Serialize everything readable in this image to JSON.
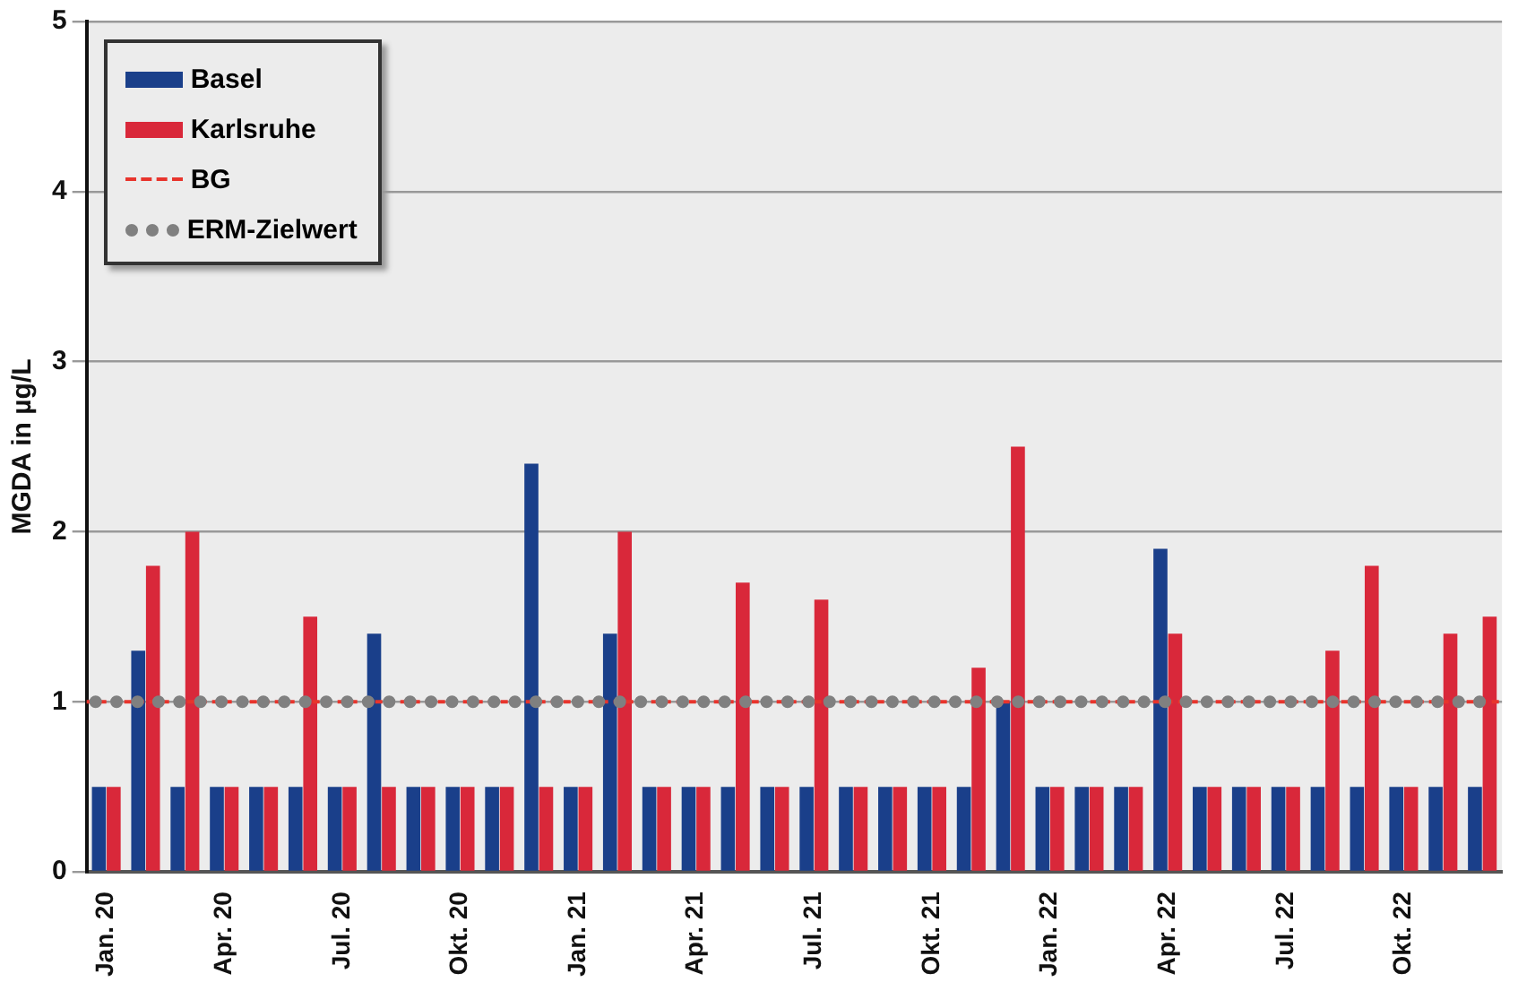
{
  "chart_data": {
    "type": "bar",
    "ylabel": "MGDA in µg/L",
    "categories": [
      "Jan. 20",
      null,
      null,
      "Apr. 20",
      null,
      null,
      "Jul. 20",
      null,
      null,
      "Okt. 20",
      null,
      null,
      "Jan. 21",
      null,
      null,
      "Apr. 21",
      null,
      null,
      "Jul. 21",
      null,
      null,
      "Okt. 21",
      null,
      null,
      "Jan. 22",
      null,
      null,
      "Apr. 22",
      null,
      null,
      "Jul. 22",
      null,
      null,
      "Okt. 22",
      null,
      null
    ],
    "series": [
      {
        "name": "Basel",
        "color": "#1a3f8a",
        "values": [
          0.5,
          1.3,
          0.5,
          0.5,
          0.5,
          0.5,
          0.5,
          1.4,
          0.5,
          0.5,
          0.5,
          2.4,
          0.5,
          1.4,
          0.5,
          0.5,
          0.5,
          0.5,
          0.5,
          0.5,
          0.5,
          0.5,
          0.5,
          1.0,
          0.5,
          0.5,
          0.5,
          1.9,
          0.5,
          0.5,
          0.5,
          0.5,
          0.5,
          0.5,
          0.5,
          0.5
        ]
      },
      {
        "name": "Karlsruhe",
        "color": "#d9283a",
        "values": [
          0.5,
          1.8,
          2.0,
          0.5,
          0.5,
          1.5,
          0.5,
          0.5,
          0.5,
          0.5,
          0.5,
          0.5,
          0.5,
          2.0,
          0.5,
          0.5,
          1.7,
          0.5,
          1.6,
          0.5,
          0.5,
          0.5,
          1.2,
          2.5,
          0.5,
          0.5,
          0.5,
          1.4,
          0.5,
          0.5,
          0.5,
          1.3,
          1.8,
          0.5,
          1.4,
          1.5
        ]
      }
    ],
    "ref_lines": [
      {
        "axis": "y",
        "value": 1,
        "label": "BG",
        "color": "#e8342c",
        "line_style": "dashed"
      },
      {
        "axis": "y",
        "value": 1,
        "label": "ERM-Zielwert",
        "color": "#808080",
        "line_style": "dotted"
      }
    ],
    "ylim": [
      0,
      5
    ],
    "yticks": [
      0,
      1,
      2,
      3,
      4,
      5
    ],
    "grid": "y",
    "legend": "top left"
  }
}
